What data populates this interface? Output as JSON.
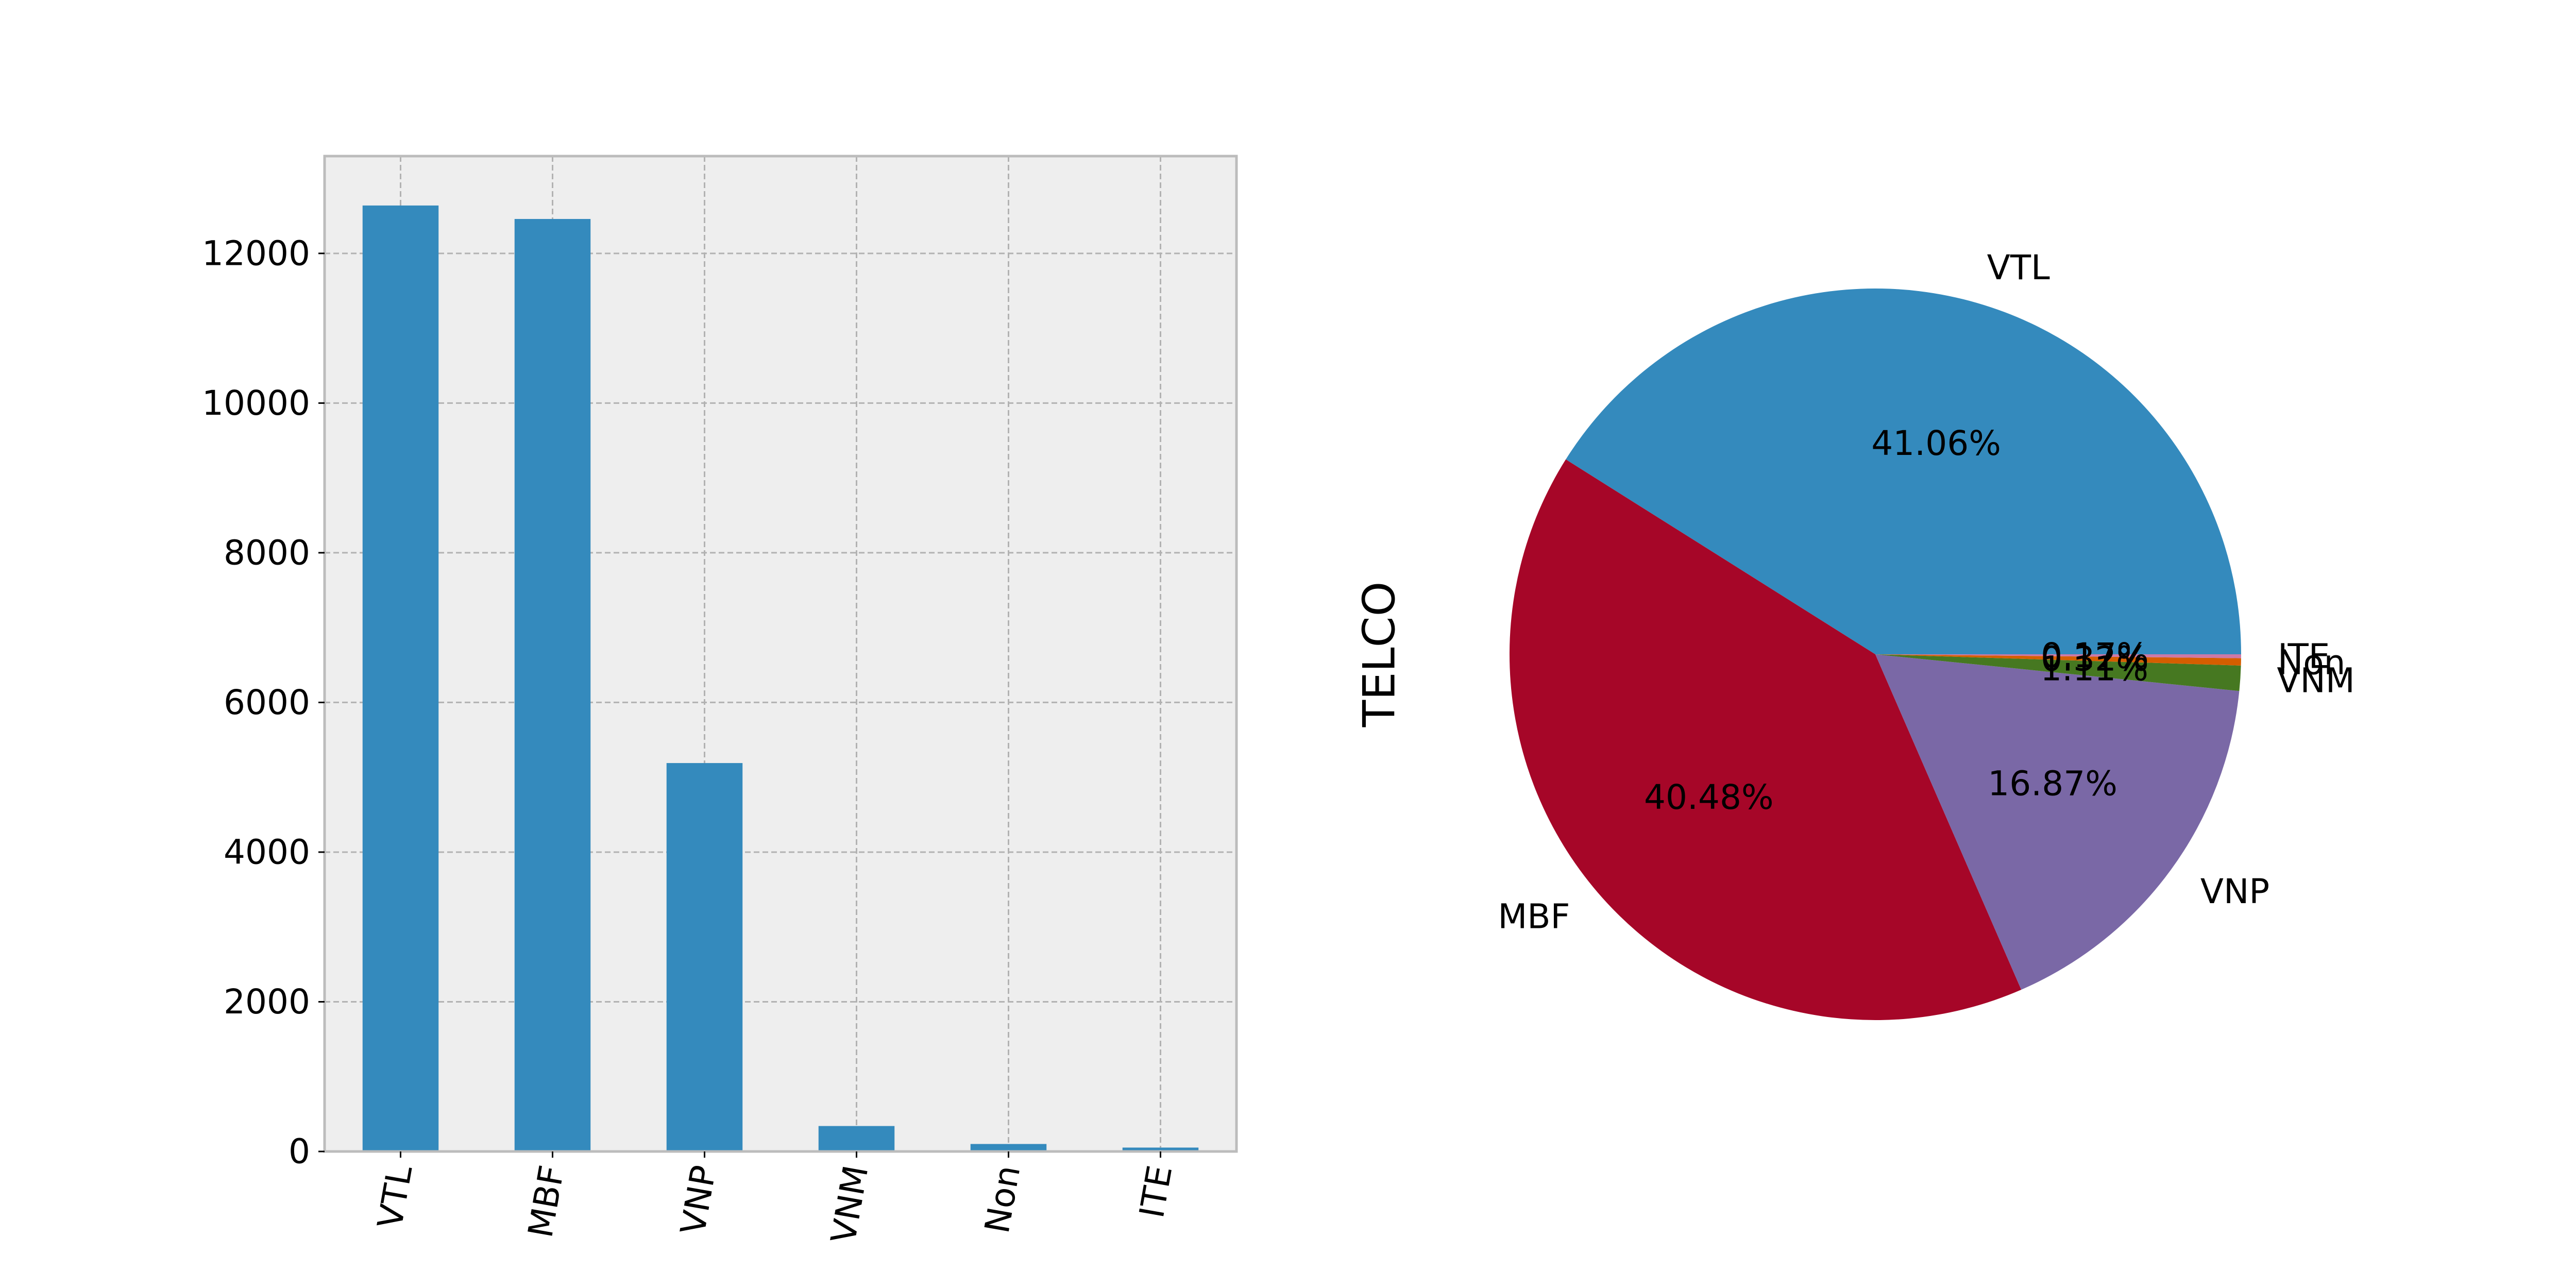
{
  "chart_data": [
    {
      "type": "bar",
      "categories": [
        "VTL",
        "MBF",
        "VNP",
        "VNM",
        "Non",
        "ITE"
      ],
      "values": [
        12640,
        12460,
        5190,
        340,
        100,
        52
      ],
      "ylim": [
        0,
        13300
      ],
      "yticks": [
        0,
        2000,
        4000,
        6000,
        8000,
        10000,
        12000
      ],
      "grid": true,
      "bar_color": "#348ABD",
      "axes_background": "#EEEEEE",
      "xtick_rotation": 80
    },
    {
      "type": "pie",
      "ylabel": "TELCO",
      "labels": [
        "VTL",
        "MBF",
        "VNP",
        "VNM",
        "Non",
        "ITE"
      ],
      "values": [
        41.06,
        40.48,
        16.87,
        1.11,
        0.32,
        0.17
      ],
      "display_values": [
        "41.06%",
        "40.48%",
        "16.87%",
        "1.11%",
        "0.32%",
        "0.17%"
      ],
      "colors": [
        "#348ABD",
        "#A60628",
        "#7A68A6",
        "#467821",
        "#D55E00",
        "#CC79A7"
      ]
    }
  ]
}
